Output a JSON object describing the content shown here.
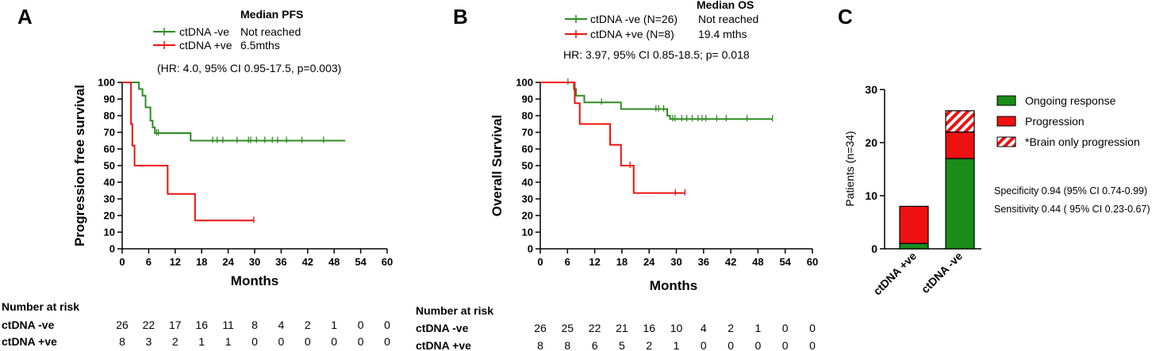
{
  "chart_data": [
    {
      "panel": "A",
      "type": "line",
      "subtype": "kaplan-meier",
      "title": "Median PFS",
      "xlabel": "Months",
      "ylabel": "Progression free survival",
      "xlim": [
        0,
        60
      ],
      "ylim": [
        0,
        100
      ],
      "xticks": [
        0,
        6,
        12,
        18,
        24,
        30,
        36,
        42,
        48,
        54,
        60
      ],
      "yticks": [
        0,
        10,
        20,
        30,
        40,
        50,
        60,
        70,
        80,
        90,
        100
      ],
      "legend": [
        {
          "label": "ctDNA -ve",
          "median": "Not reached",
          "color": "#2e8b22"
        },
        {
          "label": "ctDNA +ve",
          "median": "6.5mths",
          "color": "#ee1111"
        }
      ],
      "stats": "(HR: 4.0, 95% CI 0.95-17.5, p=0.003)",
      "series": [
        {
          "name": "ctDNA -ve",
          "color": "#2e8b22",
          "steps": [
            [
              0,
              100
            ],
            [
              3.8,
              96
            ],
            [
              4.6,
              92
            ],
            [
              5.3,
              85
            ],
            [
              6.4,
              77
            ],
            [
              6.9,
              73
            ],
            [
              7.4,
              69.5
            ],
            [
              15.5,
              65
            ],
            [
              50.5,
              65
            ]
          ],
          "censors": [
            [
              7.8,
              69.5
            ],
            [
              8.2,
              69.5
            ],
            [
              20.5,
              65
            ],
            [
              21.5,
              65
            ],
            [
              22.8,
              65
            ],
            [
              26,
              65
            ],
            [
              28.6,
              65
            ],
            [
              29.1,
              65
            ],
            [
              30.4,
              65
            ],
            [
              32.3,
              65
            ],
            [
              34,
              65
            ],
            [
              35.2,
              65
            ],
            [
              37.2,
              65
            ],
            [
              40.7,
              65
            ],
            [
              45.6,
              65
            ]
          ]
        },
        {
          "name": "ctDNA +ve",
          "color": "#ee1111",
          "steps": [
            [
              0,
              100
            ],
            [
              2.0,
              75
            ],
            [
              2.3,
              62
            ],
            [
              2.8,
              50
            ],
            [
              10.3,
              33
            ],
            [
              16.5,
              17
            ],
            [
              29.8,
              17
            ]
          ],
          "censors": [
            [
              29.8,
              17
            ]
          ]
        }
      ],
      "risk_table": {
        "title": "Number at risk",
        "times": [
          0,
          6,
          12,
          18,
          24,
          30,
          36,
          42,
          48,
          54,
          60
        ],
        "rows": [
          {
            "label": "ctDNA -ve",
            "values": [
              26,
              22,
              17,
              16,
              11,
              8,
              4,
              2,
              1,
              0,
              0
            ]
          },
          {
            "label": "ctDNA +ve",
            "values": [
              8,
              3,
              2,
              1,
              1,
              0,
              0,
              0,
              0,
              0,
              0
            ]
          }
        ]
      }
    },
    {
      "panel": "B",
      "type": "line",
      "subtype": "kaplan-meier",
      "title": "Median OS",
      "xlabel": "Months",
      "ylabel": "Overall Survival",
      "xlim": [
        0,
        60
      ],
      "ylim": [
        0,
        100
      ],
      "xticks": [
        0,
        6,
        12,
        18,
        24,
        30,
        36,
        42,
        48,
        54,
        60
      ],
      "yticks": [
        0,
        10,
        20,
        30,
        40,
        50,
        60,
        70,
        80,
        90,
        100
      ],
      "legend": [
        {
          "label": "ctDNA -ve (N=26)",
          "median": "Not reached",
          "color": "#2e8b22"
        },
        {
          "label": "ctDNA +ve (N=8)",
          "median": "19.4 mths",
          "color": "#ee1111"
        }
      ],
      "stats": "HR: 3.97, 95% CI 0.85-18.5; p= 0.018",
      "series": [
        {
          "name": "ctDNA -ve (N=26)",
          "color": "#2e8b22",
          "steps": [
            [
              0,
              100
            ],
            [
              7.4,
              96
            ],
            [
              7.9,
              92
            ],
            [
              9.7,
              88
            ],
            [
              17.8,
              84
            ],
            [
              28.0,
              80
            ],
            [
              28.6,
              78
            ],
            [
              51.2,
              78
            ]
          ],
          "censors": [
            [
              6.1,
              100
            ],
            [
              13.5,
              88
            ],
            [
              25.5,
              84
            ],
            [
              26.1,
              84
            ],
            [
              27.2,
              84
            ],
            [
              29.2,
              78
            ],
            [
              29.7,
              78
            ],
            [
              31.2,
              78
            ],
            [
              32.3,
              78
            ],
            [
              33.5,
              78
            ],
            [
              34.8,
              78
            ],
            [
              35.7,
              78
            ],
            [
              36.5,
              78
            ],
            [
              38.9,
              78
            ],
            [
              41.0,
              78
            ],
            [
              45.6,
              78
            ],
            [
              51.2,
              78
            ]
          ]
        },
        {
          "name": "ctDNA +ve (N=8)",
          "color": "#ee1111",
          "steps": [
            [
              0,
              100
            ],
            [
              7.6,
              87.5
            ],
            [
              8.7,
              75
            ],
            [
              15.4,
              62.5
            ],
            [
              17.8,
              50
            ],
            [
              20.6,
              33.5
            ],
            [
              31.9,
              33.5
            ]
          ],
          "censors": [
            [
              19.8,
              50
            ],
            [
              29.8,
              33.5
            ],
            [
              31.9,
              33.5
            ]
          ]
        }
      ],
      "risk_table": {
        "title": "Number at risk",
        "times": [
          0,
          6,
          12,
          18,
          24,
          30,
          36,
          42,
          48,
          54,
          60
        ],
        "rows": [
          {
            "label": "ctDNA -ve",
            "values": [
              26,
              25,
              22,
              21,
              16,
              10,
              4,
              2,
              1,
              0,
              0
            ]
          },
          {
            "label": "ctDNA +ve",
            "values": [
              8,
              8,
              6,
              5,
              2,
              1,
              0,
              0,
              0,
              0,
              0
            ]
          }
        ]
      }
    },
    {
      "panel": "C",
      "type": "bar",
      "stacked": true,
      "ylabel": "Patients (n=34)",
      "ylim": [
        0,
        30
      ],
      "yticks": [
        0,
        10,
        20,
        30
      ],
      "categories": [
        "ctDNA +ve",
        "ctDNA -ve"
      ],
      "series": [
        {
          "name": "Ongoing response",
          "color": "#1a8c1a",
          "pattern": "solid",
          "values": [
            1,
            17
          ]
        },
        {
          "name": "Progression",
          "color": "#ee1111",
          "pattern": "solid",
          "values": [
            7,
            5
          ]
        },
        {
          "name": "*Brain only progression",
          "color": "#ee1111",
          "pattern": "hatched",
          "values": [
            0,
            4
          ]
        }
      ],
      "annotations": [
        "Specificity 0.94 (95% CI 0.74-0.99)",
        "Sensitivity 0.44 ( 95% CI 0.23-0.67)"
      ]
    }
  ],
  "panel_labels": [
    "A",
    "B",
    "C"
  ]
}
